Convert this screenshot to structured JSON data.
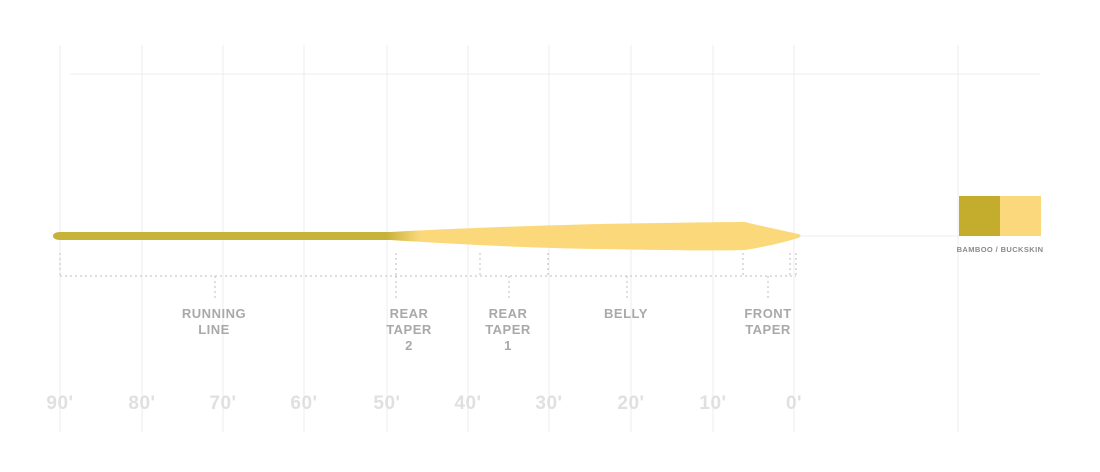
{
  "colors": {
    "running_line": "#c7b23a",
    "head": "#fbd87a",
    "grid": "#ededed",
    "bracket": "#bdbdbd",
    "label": "#a9a9a9",
    "axis_label": "#e0e0e0",
    "swatch_label": "#8a8a8a"
  },
  "segments": [
    {
      "id": "running-line",
      "label": "RUNNING\nLINE"
    },
    {
      "id": "rear-taper-2",
      "label": "REAR\nTAPER\n2"
    },
    {
      "id": "rear-taper-1",
      "label": "REAR\nTAPER\n1"
    },
    {
      "id": "belly",
      "label": "BELLY"
    },
    {
      "id": "front-taper",
      "label": "FRONT\nTAPER"
    }
  ],
  "axis_ticks": [
    "90'",
    "80'",
    "70'",
    "60'",
    "50'",
    "40'",
    "30'",
    "20'",
    "10'",
    "0'"
  ],
  "swatches": [
    {
      "name": "bamboo",
      "color": "#c4ac2d"
    },
    {
      "name": "buckskin",
      "color": "#fcd87c"
    }
  ],
  "swatch_label": "BAMBOO / BUCKSKIN"
}
